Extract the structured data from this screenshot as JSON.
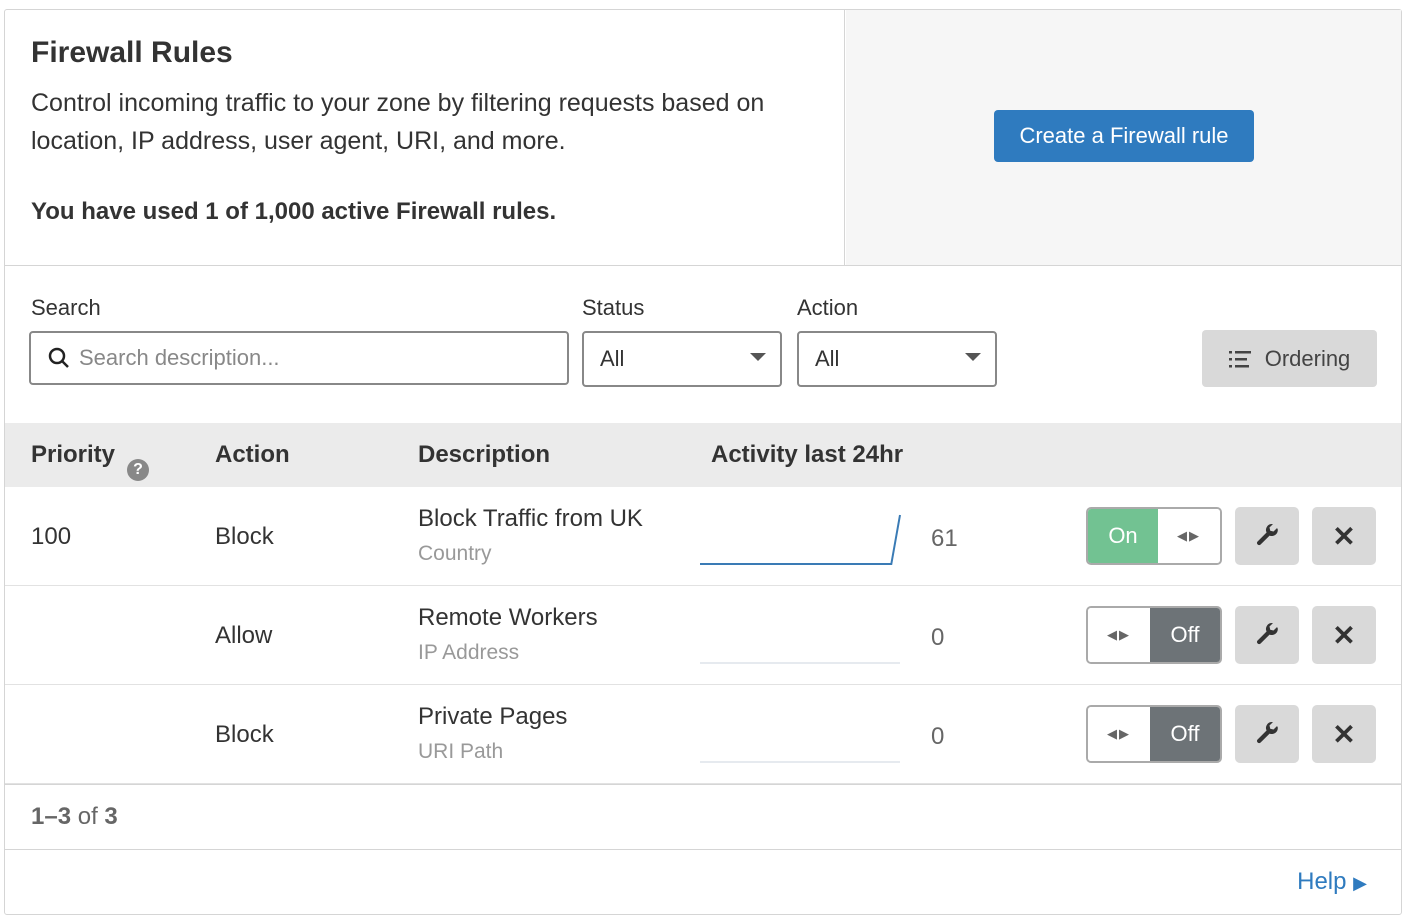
{
  "header": {
    "title": "Firewall Rules",
    "description": "Control incoming traffic to your zone by filtering requests based on location, IP address, user agent, URI, and more.",
    "usage": "You have used 1 of 1,000 active Firewall rules.",
    "create_label": "Create a Firewall rule"
  },
  "filters": {
    "search_label": "Search",
    "search_placeholder": "Search description...",
    "status_label": "Status",
    "status_value": "All",
    "action_label": "Action",
    "action_value": "All",
    "ordering_label": "Ordering"
  },
  "table": {
    "columns": [
      "Priority",
      "Action",
      "Description",
      "Activity last 24hr"
    ],
    "rows": [
      {
        "priority": "100",
        "action": "Block",
        "description": "Block Traffic from UK",
        "type": "Country",
        "count": "61",
        "enabled": true,
        "toggle": "On",
        "activity": [
          0,
          0,
          0,
          0,
          0,
          0,
          0,
          0,
          0,
          0,
          0,
          0,
          0,
          0,
          0,
          0,
          0,
          0,
          0,
          0,
          0,
          0,
          0,
          61
        ]
      },
      {
        "priority": "",
        "action": "Allow",
        "description": "Remote Workers",
        "type": "IP Address",
        "count": "0",
        "enabled": false,
        "toggle": "Off",
        "activity": [
          0,
          0,
          0,
          0,
          0,
          0,
          0,
          0,
          0,
          0,
          0,
          0,
          0,
          0,
          0,
          0,
          0,
          0,
          0,
          0,
          0,
          0,
          0,
          0
        ]
      },
      {
        "priority": "",
        "action": "Block",
        "description": "Private Pages",
        "type": "URI Path",
        "count": "0",
        "enabled": false,
        "toggle": "Off",
        "activity": [
          0,
          0,
          0,
          0,
          0,
          0,
          0,
          0,
          0,
          0,
          0,
          0,
          0,
          0,
          0,
          0,
          0,
          0,
          0,
          0,
          0,
          0,
          0,
          0
        ]
      }
    ]
  },
  "pagination": {
    "range": "1–3",
    "of": "of",
    "total": "3"
  },
  "footer": {
    "help_label": "Help"
  },
  "colors": {
    "accent": "#2f7bbf",
    "on": "#72c292",
    "off": "#6d7377"
  }
}
